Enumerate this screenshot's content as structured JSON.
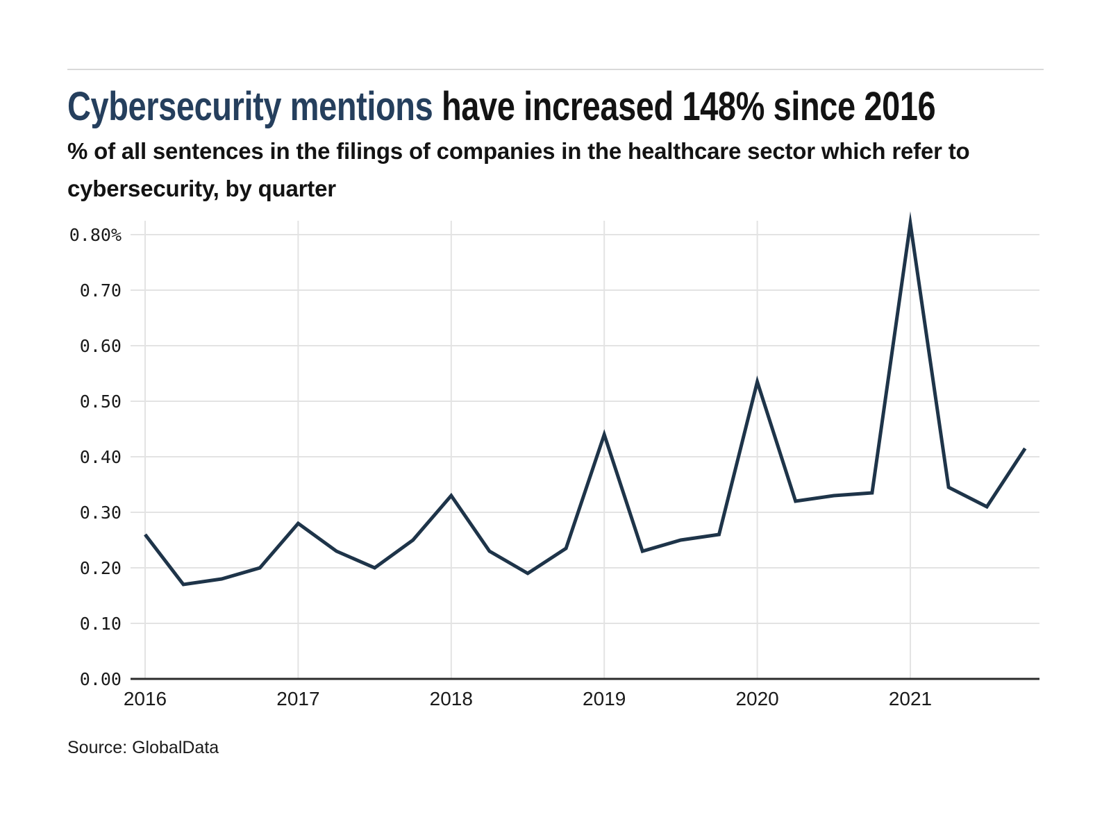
{
  "header": {
    "title_highlight": "Cybersecurity mentions",
    "title_rest": " have increased 148% since 2016",
    "subtitle": "% of all sentences in the filings of companies in the healthcare sector which refer to cybersecurity, by quarter"
  },
  "source_note": "Source: GlobalData",
  "colors": {
    "title_highlight": "#253f5d",
    "title_rest": "#131313",
    "line": "#1e3449",
    "grid": "#e3e3e3",
    "axis": "#2b2b2b",
    "tick_text": "#1a1a1a"
  },
  "chart_data": {
    "type": "line",
    "title": "Cybersecurity mentions have increased 148% since 2016",
    "subtitle": "% of all sentences in the filings of companies in the healthcare sector which refer to cybersecurity, by quarter",
    "x": [
      "Q1 2016",
      "Q2 2016",
      "Q3 2016",
      "Q4 2016",
      "Q1 2017",
      "Q2 2017",
      "Q3 2017",
      "Q4 2017",
      "Q1 2018",
      "Q2 2018",
      "Q3 2018",
      "Q4 2018",
      "Q1 2019",
      "Q2 2019",
      "Q3 2019",
      "Q4 2019",
      "Q1 2020",
      "Q2 2020",
      "Q3 2020",
      "Q4 2020",
      "Q1 2021",
      "Q2 2021",
      "Q3 2021",
      "Q4 2021"
    ],
    "series": [
      {
        "name": "% of sentences referring to cybersecurity",
        "values": [
          0.26,
          0.17,
          0.18,
          0.2,
          0.28,
          0.23,
          0.2,
          0.25,
          0.33,
          0.23,
          0.19,
          0.235,
          0.44,
          0.23,
          0.25,
          0.26,
          0.535,
          0.32,
          0.33,
          0.335,
          0.82,
          0.345,
          0.31,
          0.415
        ]
      }
    ],
    "x_tick_labels": [
      "2016",
      "2017",
      "2018",
      "2019",
      "2020",
      "2021"
    ],
    "y_tick_labels": [
      "0.00",
      "0.10",
      "0.20",
      "0.30",
      "0.40",
      "0.50",
      "0.60",
      "0.70",
      "0.80%"
    ],
    "ylim": [
      0,
      0.8
    ],
    "grid": true,
    "legend": false,
    "unit": "percent"
  }
}
